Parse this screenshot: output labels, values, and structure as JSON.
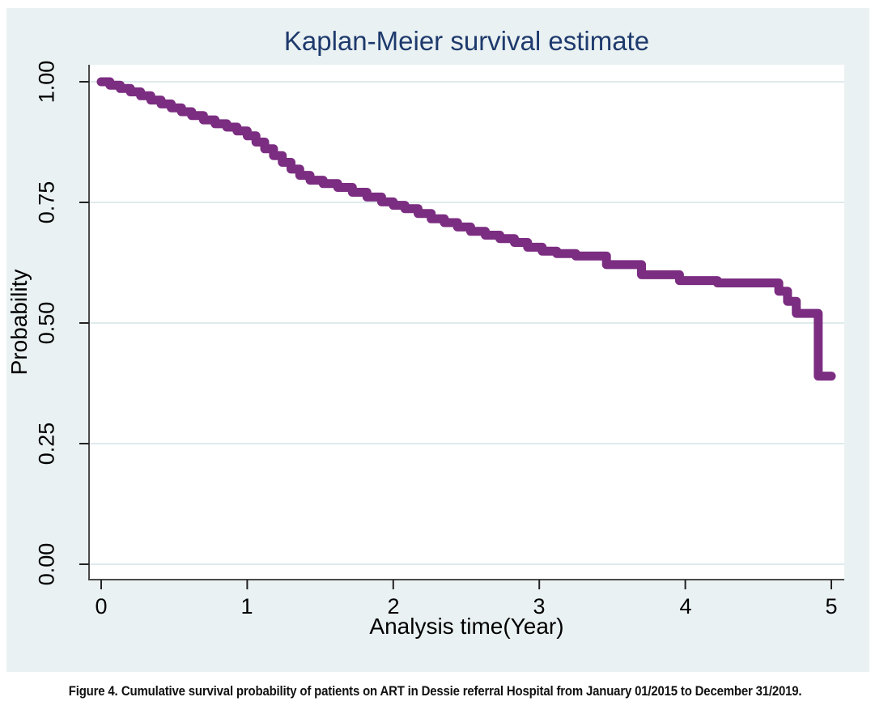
{
  "figure": {
    "caption_label": "Figure 4.",
    "caption_text": "Cumulative survival probability of patients on ART in Dessie referral Hospital from January 01/2015 to December 31/2019."
  },
  "chart_data": {
    "type": "line",
    "style": "kaplan-meier-stairstep",
    "title": "Kaplan-Meier survival estimate",
    "xlabel": "Analysis time(Year)",
    "ylabel": "Probability",
    "xlim": [
      0,
      5
    ],
    "ylim": [
      0.0,
      1.0
    ],
    "x_ticks": [
      "0",
      "1",
      "2",
      "3",
      "4",
      "5"
    ],
    "y_ticks": [
      "1.00",
      "0.75",
      "0.50",
      "0.25",
      "0.00"
    ],
    "grid": "horizontal",
    "legend": "none",
    "line_color": "#7B2D81",
    "series": [
      {
        "name": "Survival estimate",
        "x": [
          0.0,
          0.06,
          0.13,
          0.2,
          0.27,
          0.34,
          0.41,
          0.48,
          0.55,
          0.62,
          0.7,
          0.78,
          0.86,
          0.93,
          1.0,
          1.06,
          1.12,
          1.18,
          1.24,
          1.3,
          1.36,
          1.43,
          1.52,
          1.62,
          1.72,
          1.82,
          1.92,
          2.0,
          2.08,
          2.17,
          2.26,
          2.35,
          2.44,
          2.53,
          2.63,
          2.73,
          2.83,
          2.92,
          3.02,
          3.12,
          3.25,
          3.46,
          3.7,
          3.96,
          4.22,
          4.64,
          4.7,
          4.76,
          4.91,
          5.0
        ],
        "y": [
          1.0,
          0.993,
          0.986,
          0.979,
          0.971,
          0.962,
          0.954,
          0.946,
          0.938,
          0.93,
          0.921,
          0.913,
          0.906,
          0.898,
          0.888,
          0.875,
          0.861,
          0.847,
          0.833,
          0.819,
          0.806,
          0.796,
          0.789,
          0.781,
          0.771,
          0.761,
          0.751,
          0.744,
          0.737,
          0.727,
          0.716,
          0.708,
          0.699,
          0.69,
          0.682,
          0.675,
          0.667,
          0.657,
          0.649,
          0.644,
          0.639,
          0.621,
          0.6,
          0.588,
          0.583,
          0.566,
          0.545,
          0.52,
          0.39,
          0.39
        ]
      }
    ]
  },
  "colors": {
    "panel_background": "#EAF1F2",
    "plot_background": "#FFFFFF",
    "gridline": "#DFEAEC",
    "axis": "#4A4A4A",
    "title_text": "#1E3A6D",
    "tick_text": "#000000",
    "curve": "#7B2D81",
    "caption_text": "#111111"
  }
}
